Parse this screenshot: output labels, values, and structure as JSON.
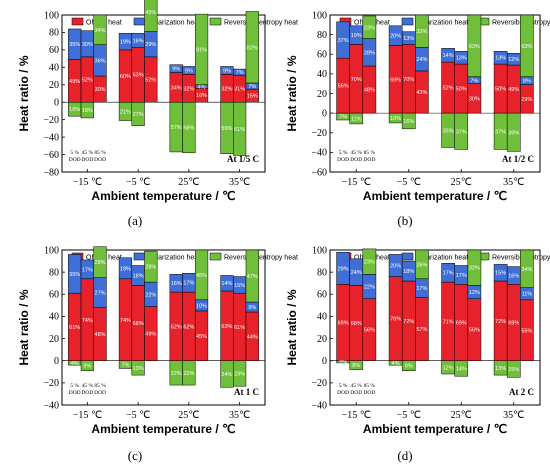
{
  "colors": {
    "ohmic": "#e8222a",
    "polarization": "#3f6fd6",
    "reversible": "#6fbf3a",
    "dark_ohmic": "#9c1418",
    "dark_polarization": "#24468f",
    "dark_reversible": "#3f7d1f"
  },
  "legend": [
    "Ohmic heat",
    "Polarization heat",
    "Reversible entropy heat"
  ],
  "ylabel": "Heat ratio / %",
  "xlabel": "Ambient temperature / ℃",
  "categories": [
    "−15 ℃",
    "−5 ℃",
    "25℃",
    "35℃"
  ],
  "yticks": [
    "100",
    "80",
    "60",
    "40",
    "20",
    "0",
    "−20",
    "−40",
    "−60",
    "−80"
  ],
  "dod_labels": [
    "5 %",
    "45 %",
    "85 %"
  ],
  "dod_word": "DOD",
  "chart_data": [
    {
      "type": "bar",
      "panel_label": "(a)",
      "annotation": "At 1/5 C",
      "ylim": [
        -80,
        100
      ],
      "categories": [
        "−15 ℃",
        "−5 ℃",
        "25℃",
        "35℃"
      ],
      "dod": [
        "5 %",
        "45 %",
        "85 %"
      ],
      "series": [
        {
          "name": "Ohmic heat",
          "values": [
            [
              49,
              52,
              30
            ],
            [
              60,
              63,
              52
            ],
            [
              34,
              32,
              16
            ],
            [
              32,
              31,
              15
            ]
          ]
        },
        {
          "name": "Polarization heat",
          "values": [
            [
              35,
              30,
              36
            ],
            [
              19,
              16,
              29
            ],
            [
              9,
              9,
              4
            ],
            [
              9,
              7,
              7
            ]
          ]
        },
        {
          "name": "Reversible entropy heat",
          "values": [
            [
              -16,
              -18,
              34
            ],
            [
              -21,
              -27,
              45
            ],
            [
              -57,
              -58,
              81
            ],
            [
              -59,
              -61,
              82
            ]
          ]
        }
      ]
    },
    {
      "type": "bar",
      "panel_label": "(b)",
      "annotation": "At 1/2 C",
      "ylim": [
        -60,
        100
      ],
      "categories": [
        "−15 ℃",
        "−5 ℃",
        "25℃",
        "35℃"
      ],
      "dod": [
        "5 %",
        "45 %",
        "85 %"
      ],
      "series": [
        {
          "name": "Ohmic heat",
          "values": [
            [
              56,
              70,
              48
            ],
            [
              69,
              70,
              43
            ],
            [
              52,
              50,
              30
            ],
            [
              50,
              49,
              29
            ]
          ]
        },
        {
          "name": "Polarization heat",
          "values": [
            [
              37,
              19,
              28
            ],
            [
              20,
              13,
              24
            ],
            [
              14,
              13,
              7
            ],
            [
              13,
              12,
              8
            ]
          ]
        },
        {
          "name": "Reversible entropy heat",
          "values": [
            [
              -7,
              -11,
              23
            ],
            [
              -10,
              -16,
              33
            ],
            [
              -35,
              -37,
              63
            ],
            [
              -37,
              -39,
              63
            ]
          ]
        }
      ]
    },
    {
      "type": "bar",
      "panel_label": "(c)",
      "annotation": "At 1 C",
      "ylim": [
        -40,
        100
      ],
      "categories": [
        "−15 ℃",
        "−5 ℃",
        "25℃",
        "35℃"
      ],
      "dod": [
        "5 %",
        "45 %",
        "85 %"
      ],
      "series": [
        {
          "name": "Ohmic heat",
          "values": [
            [
              61,
              74,
              48
            ],
            [
              74,
              68,
              49
            ],
            [
              62,
              62,
              45
            ],
            [
              63,
              61,
              44
            ]
          ]
        },
        {
          "name": "Polarization heat",
          "values": [
            [
              35,
              17,
              27
            ],
            [
              19,
              18,
              22
            ],
            [
              16,
              17,
              10
            ],
            [
              14,
              15,
              9
            ]
          ]
        },
        {
          "name": "Reversible entropy heat",
          "values": [
            [
              -4,
              -9,
              28
            ],
            [
              -7,
              -13,
              28
            ],
            [
              -22,
              -22,
              45
            ],
            [
              -24,
              -23,
              47
            ]
          ]
        }
      ]
    },
    {
      "type": "bar",
      "panel_label": "(d)",
      "annotation": "At 2 C",
      "ylim": [
        -40,
        100
      ],
      "categories": [
        "−15 ℃",
        "−5 ℃",
        "25℃",
        "35℃"
      ],
      "dod": [
        "5 %",
        "45 %",
        "85 %"
      ],
      "series": [
        {
          "name": "Ohmic heat",
          "values": [
            [
              69,
              68,
              56
            ],
            [
              76,
              72,
              57
            ],
            [
              71,
              69,
              56
            ],
            [
              72,
              69,
              55
            ]
          ]
        },
        {
          "name": "Polarization heat",
          "values": [
            [
              29,
              24,
              22
            ],
            [
              20,
              18,
              17
            ],
            [
              17,
              17,
              12
            ],
            [
              15,
              16,
              11
            ]
          ]
        },
        {
          "name": "Reversible entropy heat",
          "values": [
            [
              -2,
              -8,
              23
            ],
            [
              -4,
              -9,
              26
            ],
            [
              -12,
              -14,
              32
            ],
            [
              -13,
              -15,
              34
            ]
          ]
        }
      ]
    }
  ]
}
